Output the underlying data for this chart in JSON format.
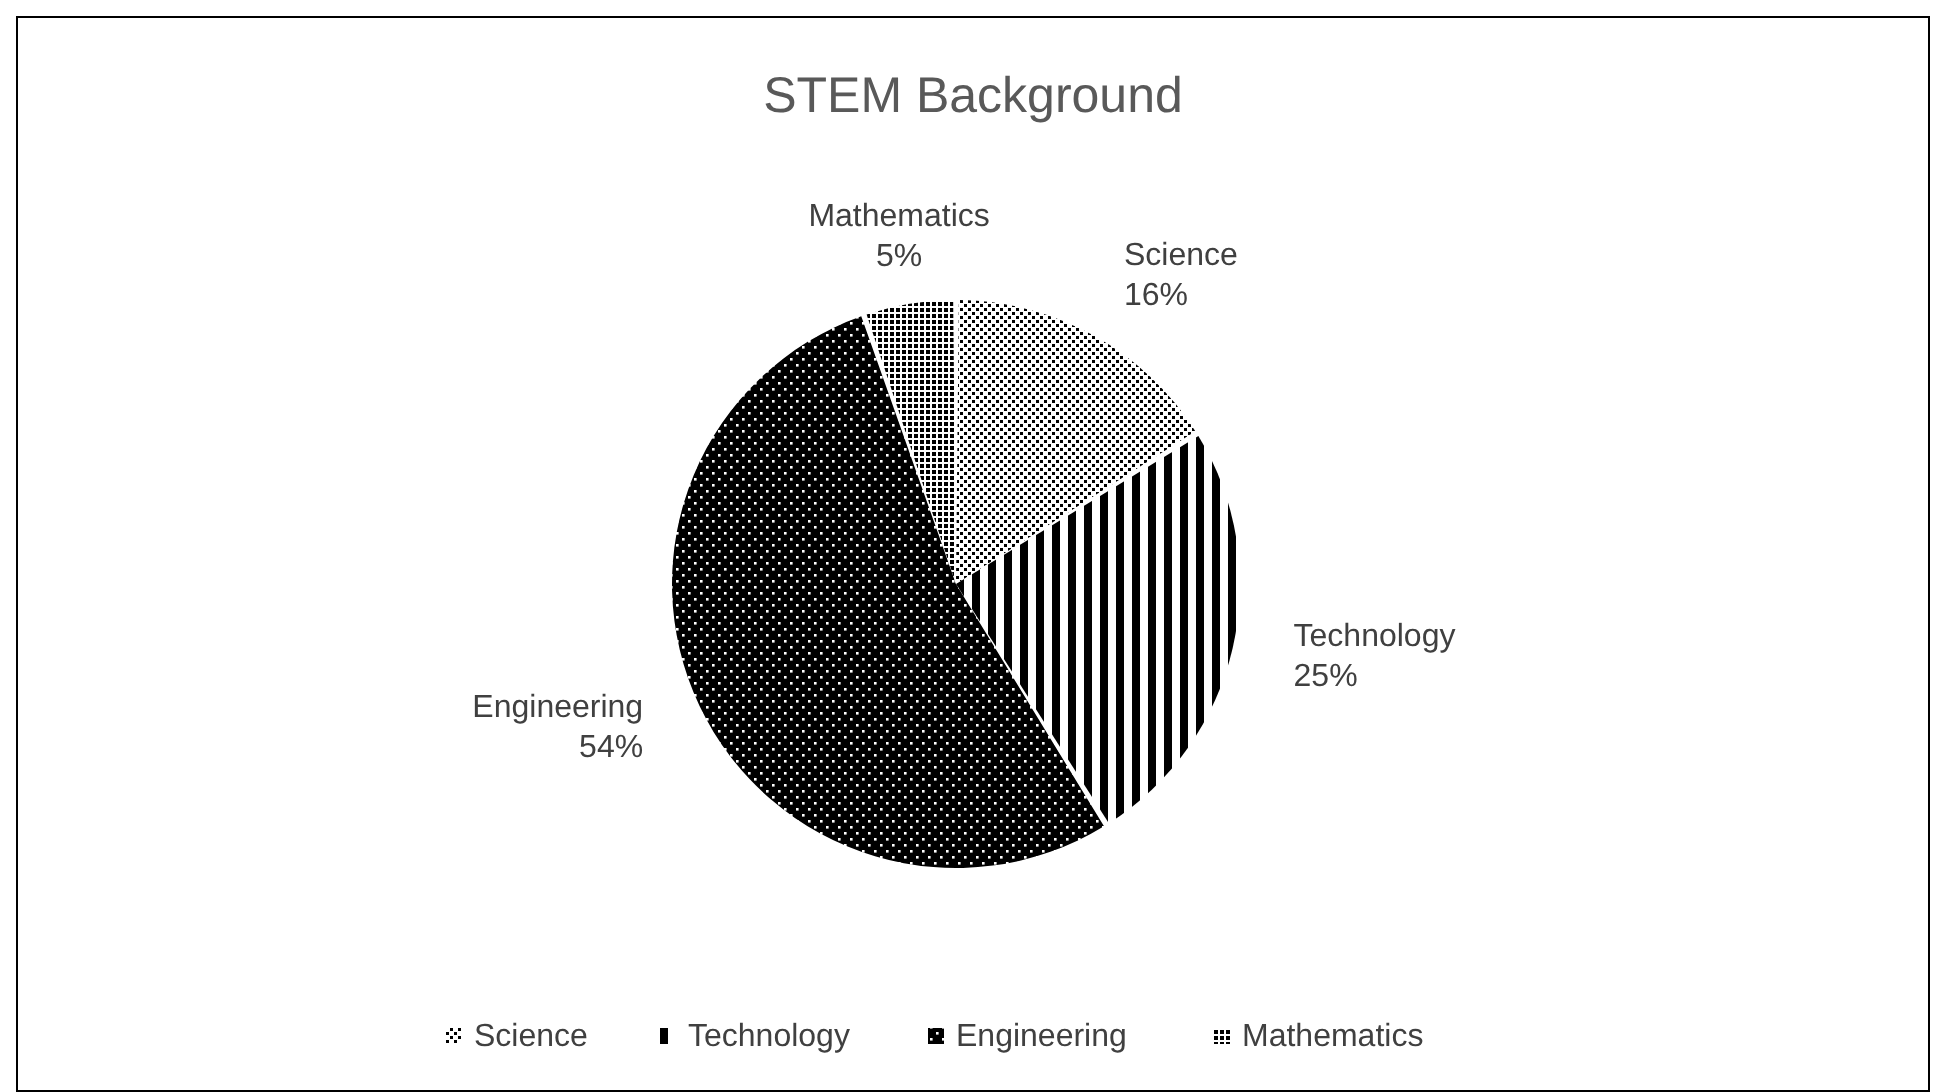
{
  "chart_data": {
    "type": "pie",
    "title": "STEM Background",
    "categories": [
      "Science",
      "Technology",
      "Engineering",
      "Mathematics"
    ],
    "values": [
      16,
      25,
      54,
      5
    ],
    "colors": [
      "#ffffff",
      "#ffffff",
      "#000000",
      "#ffffff"
    ],
    "value_labels": [
      "16%",
      "25%",
      "54%",
      "5%"
    ],
    "legend": "bottom"
  }
}
